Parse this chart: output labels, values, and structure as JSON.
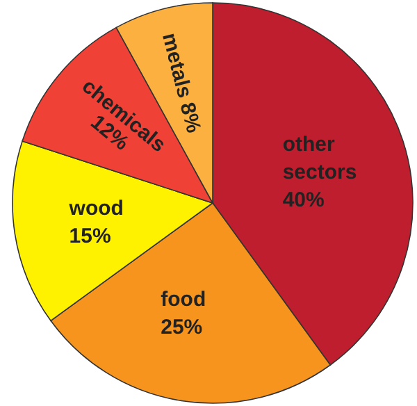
{
  "chart_data": {
    "type": "pie",
    "categories": [
      "other sectors",
      "food",
      "wood",
      "chemicals",
      "metals"
    ],
    "values": [
      40,
      25,
      15,
      12,
      8
    ],
    "colors": [
      "#be1e2d",
      "#f7941d",
      "#fff200",
      "#ef4136",
      "#fbb040"
    ],
    "value_labels": [
      "40%",
      "25%",
      "15%",
      "12%",
      "8%"
    ]
  }
}
